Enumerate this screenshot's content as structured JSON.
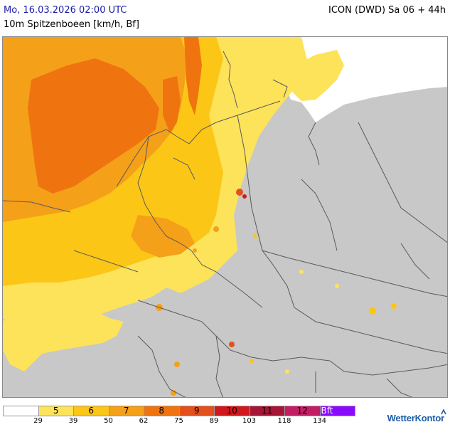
{
  "header": {
    "date": "Mo, 16.03.2026 02:00 UTC",
    "model": "ICON (DWD) Sa 06 + 44h",
    "parameter": "10m Spitzenboeen [km/h, Bf]"
  },
  "colors": {
    "land_grey": "#c8c8c8",
    "sea_white": "#ffffff",
    "bft5": "#fde35a",
    "bft6": "#fcc616",
    "bft7": "#f5a019",
    "bft8": "#ef7410",
    "bft9": "#e4501c",
    "bft10": "#d2161d",
    "bft11": "#a51535",
    "bft12": "#c21e64",
    "bft_extreme": "#8a0aff",
    "border": "#5a5a5a"
  },
  "legend": {
    "beaufort_labels": [
      "",
      "5",
      "6",
      "7",
      "8",
      "9",
      "10",
      "11",
      "12",
      "Bft"
    ],
    "kmh_ticks": [
      "29",
      "39",
      "50",
      "62",
      "75",
      "89",
      "103",
      "118",
      "134"
    ]
  },
  "branding": {
    "logo_text": "WetterKontor"
  }
}
